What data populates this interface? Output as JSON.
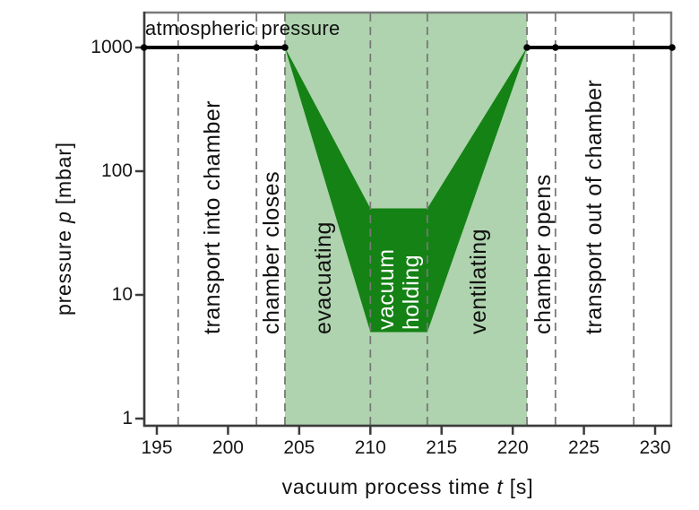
{
  "chart_data": {
    "type": "area",
    "annotation": "atmospheric pressure",
    "x_axis": {
      "label_parts": [
        "vacuum process time ",
        "t",
        " [s]"
      ],
      "ticks": [
        195,
        200,
        205,
        210,
        215,
        220,
        225,
        230
      ],
      "range": [
        194.1,
        231.2
      ],
      "unit": "s"
    },
    "y_axis": {
      "label_parts": [
        "pressure ",
        "p",
        " [mbar]"
      ],
      "ticks": [
        1,
        10,
        100,
        1000
      ],
      "scale": "log",
      "range": [
        0.9,
        1900
      ],
      "unit": "mbar"
    },
    "atmospheric_pressure_mbar": 1000,
    "line_segments": [
      {
        "t": [
          194.1,
          204
        ],
        "p": [
          1000,
          1000
        ]
      },
      {
        "t": [
          221,
          231.2
        ],
        "p": [
          1000,
          1000
        ]
      }
    ],
    "markers_t": [
      194.1,
      202,
      204,
      221,
      223,
      231.2
    ],
    "pressure_band": {
      "upper": [
        [
          204,
          1000
        ],
        [
          210,
          50
        ],
        [
          214,
          50
        ],
        [
          221,
          1000
        ]
      ],
      "lower": [
        [
          204,
          1000
        ],
        [
          210,
          5
        ],
        [
          214,
          5
        ],
        [
          221,
          1000
        ]
      ]
    },
    "highlight_region": {
      "t_start": 204,
      "t_end": 221
    },
    "phase_boundaries_t": [
      196.5,
      202,
      204,
      210,
      214,
      221,
      223,
      228.5
    ],
    "phases": [
      {
        "label": "transport into chamber",
        "center_t": 198.9,
        "color": "#111111"
      },
      {
        "label": "chamber closes",
        "center_t": 203.05,
        "color": "#111111"
      },
      {
        "label": "evacuating",
        "center_t": 206.7,
        "color": "#111111"
      },
      {
        "label": "vacuum holding",
        "lines": [
          "vacuum",
          "holding"
        ],
        "center_t": 212.0,
        "color": "#ffffff"
      },
      {
        "label": "ventilating",
        "center_t": 217.6,
        "color": "#111111"
      },
      {
        "label": "chamber opens",
        "center_t": 222.1,
        "color": "#111111"
      },
      {
        "label": "transport out of chamber",
        "center_t": 225.7,
        "color": "#111111"
      }
    ],
    "colors": {
      "band": "#148214",
      "highlight": "#aed3ae",
      "line": "#000000",
      "boundary": "#787878",
      "frame": "#7a7a7a",
      "axis": "#3c3c3c",
      "text": "#111111"
    }
  }
}
